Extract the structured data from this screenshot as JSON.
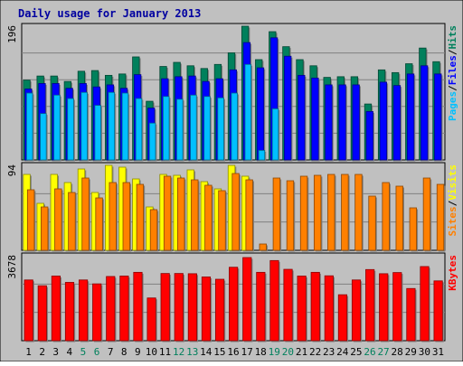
{
  "chart_data": [
    {
      "type": "bar",
      "panel": "hits-files-pages",
      "title": "Daily usage for January 2013",
      "ymax_label": "196",
      "ylim": [
        0,
        196
      ],
      "legend": [
        {
          "label": "Pages",
          "color": "#00c0ff"
        },
        {
          "label": "/",
          "color": "#000000"
        },
        {
          "label": "Files",
          "color": "#0000ff"
        },
        {
          "label": "/",
          "color": "#000000"
        },
        {
          "label": "Hits",
          "color": "#00805c"
        }
      ],
      "categories": [
        "1",
        "2",
        "3",
        "4",
        "5",
        "6",
        "7",
        "8",
        "9",
        "10",
        "11",
        "12",
        "13",
        "14",
        "15",
        "16",
        "17",
        "18",
        "19",
        "20",
        "21",
        "22",
        "23",
        "24",
        "25",
        "26",
        "27",
        "28",
        "29",
        "30",
        "31"
      ],
      "series": [
        {
          "name": "Hits",
          "color": "#00805c",
          "values": [
            117,
            123,
            123,
            115,
            130,
            131,
            124,
            126,
            151,
            86,
            137,
            143,
            138,
            134,
            140,
            157,
            196,
            147,
            188,
            166,
            147,
            138,
            121,
            122,
            122,
            82,
            132,
            128,
            141,
            164,
            144
          ]
        },
        {
          "name": "Files",
          "color": "#0000ff",
          "values": [
            104,
            112,
            112,
            105,
            112,
            107,
            110,
            105,
            125,
            76,
            119,
            122,
            123,
            115,
            119,
            132,
            172,
            135,
            179,
            152,
            124,
            120,
            110,
            110,
            110,
            71,
            114,
            109,
            126,
            138,
            126
          ]
        },
        {
          "name": "Pages",
          "color": "#00c0ff",
          "values": [
            98,
            68,
            95,
            90,
            99,
            80,
            99,
            98,
            90,
            54,
            93,
            89,
            95,
            93,
            91,
            98,
            140,
            14,
            75,
            0,
            0,
            0,
            0,
            0,
            0,
            0,
            0,
            0,
            0,
            0,
            0
          ]
        }
      ]
    },
    {
      "type": "bar",
      "panel": "visits-sites",
      "ymax_label": "94",
      "ylim": [
        0,
        94
      ],
      "legend": [
        {
          "label": "Sites",
          "color": "#ff8000"
        },
        {
          "label": "/",
          "color": "#000000"
        },
        {
          "label": "Visits",
          "color": "#ffff00"
        }
      ],
      "series": [
        {
          "name": "Visits",
          "color": "#ffff00",
          "values": [
            84,
            52,
            84,
            75,
            90,
            64,
            94,
            92,
            79,
            48,
            84,
            83,
            89,
            76,
            68,
            94,
            82,
            0,
            0,
            0,
            0,
            0,
            0,
            0,
            0,
            0,
            0,
            0,
            0,
            0,
            0
          ]
        },
        {
          "name": "Sites",
          "color": "#ff8000",
          "values": [
            67,
            48,
            68,
            64,
            80,
            58,
            75,
            75,
            73,
            45,
            82,
            80,
            78,
            72,
            66,
            85,
            78,
            7,
            80,
            77,
            82,
            83,
            84,
            84,
            84,
            60,
            75,
            71,
            47,
            80,
            73
          ]
        }
      ]
    },
    {
      "type": "bar",
      "panel": "kbytes",
      "ymax_label": "3678",
      "ylim": [
        0,
        3678
      ],
      "legend": [
        {
          "label": "KBytes",
          "color": "#ff0000"
        }
      ],
      "series": [
        {
          "name": "KBytes",
          "color": "#ff0000",
          "values": [
            2630,
            2380,
            2800,
            2525,
            2630,
            2460,
            2780,
            2800,
            2960,
            1850,
            2910,
            2910,
            2900,
            2760,
            2660,
            3180,
            3600,
            2960,
            3470,
            3090,
            2800,
            2960,
            2810,
            1990,
            2630,
            3080,
            2900,
            2950,
            2260,
            3210,
            2590
          ]
        }
      ]
    }
  ]
}
